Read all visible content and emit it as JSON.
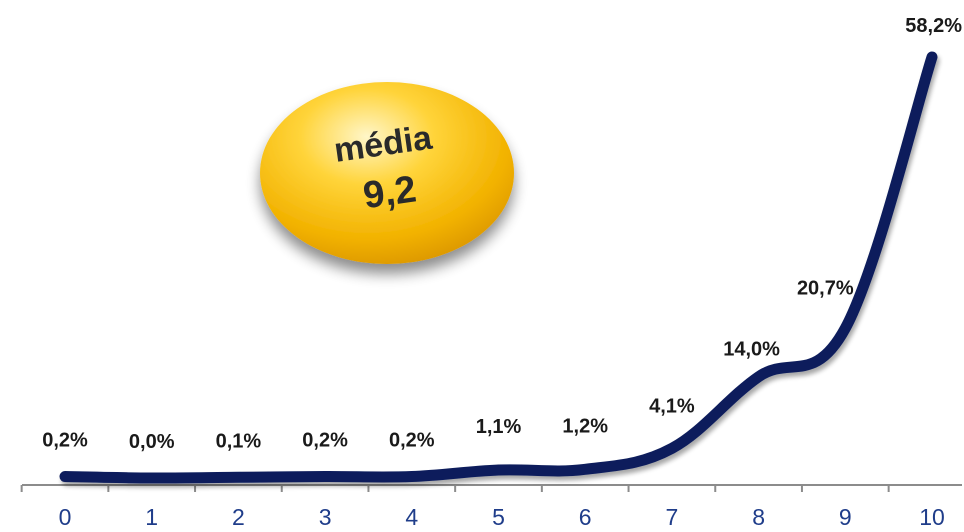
{
  "chart_data": {
    "type": "line",
    "categories": [
      "0",
      "1",
      "2",
      "3",
      "4",
      "5",
      "6",
      "7",
      "8",
      "9",
      "10"
    ],
    "values": [
      0.2,
      0.0,
      0.1,
      0.2,
      0.2,
      1.1,
      1.2,
      4.1,
      14.0,
      20.7,
      58.2
    ],
    "data_labels": [
      "0,2%",
      "0,0%",
      "0,1%",
      "0,2%",
      "0,2%",
      "1,1%",
      "1,2%",
      "4,1%",
      "14,0%",
      "20,7%",
      "58,2%"
    ],
    "ylim": [
      0,
      60
    ],
    "grid": false,
    "line_color": "#0d1f5c",
    "tick_label_color": "#1f3d8a"
  },
  "badge": {
    "label": "média",
    "value": "9,2",
    "color": "#f5b400"
  }
}
